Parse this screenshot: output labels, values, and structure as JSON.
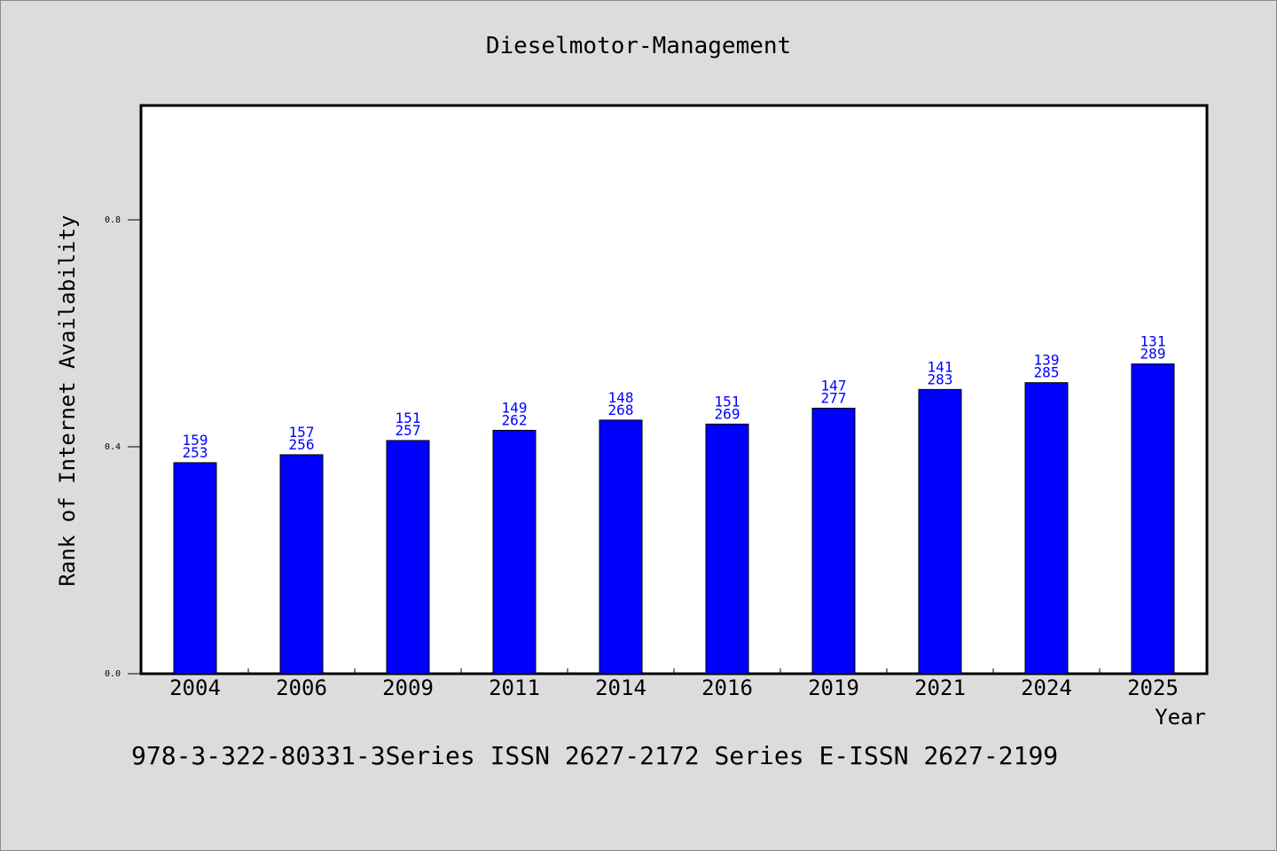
{
  "chart_data": {
    "type": "bar",
    "title": "Dieselmotor-Management",
    "xlabel": "Year",
    "ylabel": "Rank of Internet Availability",
    "categories": [
      "2004",
      "2006",
      "2009",
      "2011",
      "2014",
      "2016",
      "2019",
      "2021",
      "2024",
      "2025"
    ],
    "values": [
      0.372,
      0.386,
      0.411,
      0.429,
      0.447,
      0.44,
      0.468,
      0.501,
      0.513,
      0.546
    ],
    "labels_top": [
      "159",
      "157",
      "151",
      "149",
      "148",
      "151",
      "147",
      "141",
      "139",
      "131"
    ],
    "labels_bottom": [
      "253",
      "256",
      "257",
      "262",
      "268",
      "269",
      "277",
      "283",
      "285",
      "289"
    ],
    "ylim": [
      0,
      1.0
    ],
    "yticks": [
      0.0,
      0.4,
      0.8
    ],
    "ytick_labels": [
      "0.0",
      "0.4",
      "0.8"
    ],
    "grid": false,
    "bar_color": "#0000ff"
  },
  "footer": {
    "text": "978-3-322-80331-3Series ISSN 2627-2172 Series E-ISSN 2627-2199"
  }
}
